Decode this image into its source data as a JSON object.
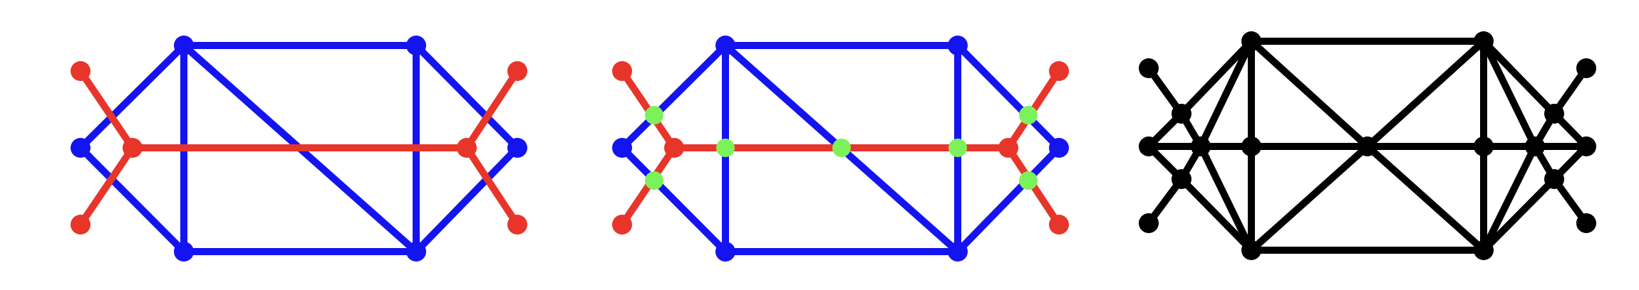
{
  "colors": {
    "blue": "#1414f0",
    "red": "#e8352a",
    "green": "#7cf25a",
    "black": "#000000"
  },
  "diagrams": [
    {
      "name": "panel-blue-red-graph",
      "edges": [
        {
          "from": "b_top_left",
          "to": "b_top_right",
          "color": "blue"
        },
        {
          "from": "b_bot_left",
          "to": "b_bot_right",
          "color": "blue"
        },
        {
          "from": "b_top_left",
          "to": "b_bot_left",
          "color": "blue"
        },
        {
          "from": "b_top_right",
          "to": "b_bot_right",
          "color": "blue"
        },
        {
          "from": "b_top_left",
          "to": "b_bot_right",
          "color": "blue"
        },
        {
          "from": "b_left",
          "to": "b_top_left",
          "color": "blue"
        },
        {
          "from": "b_left",
          "to": "b_bot_left",
          "color": "blue"
        },
        {
          "from": "b_right",
          "to": "b_top_right",
          "color": "blue"
        },
        {
          "from": "b_right",
          "to": "b_bot_right",
          "color": "blue"
        },
        {
          "from": "r_left_hub",
          "to": "r_right_hub",
          "color": "red"
        },
        {
          "from": "r_left_hub",
          "to": "r_left_top",
          "color": "red"
        },
        {
          "from": "r_left_hub",
          "to": "r_left_bot",
          "color": "red"
        },
        {
          "from": "r_right_hub",
          "to": "r_right_top",
          "color": "red"
        },
        {
          "from": "r_right_hub",
          "to": "r_right_bot",
          "color": "red"
        }
      ],
      "nodes": [
        {
          "id": "b_top_left",
          "color": "blue"
        },
        {
          "id": "b_top_right",
          "color": "blue"
        },
        {
          "id": "b_bot_left",
          "color": "blue"
        },
        {
          "id": "b_bot_right",
          "color": "blue"
        },
        {
          "id": "b_left",
          "color": "blue"
        },
        {
          "id": "b_right",
          "color": "blue"
        },
        {
          "id": "r_left_hub",
          "color": "red"
        },
        {
          "id": "r_right_hub",
          "color": "red"
        },
        {
          "id": "r_left_top",
          "color": "red"
        },
        {
          "id": "r_left_bot",
          "color": "red"
        },
        {
          "id": "r_right_top",
          "color": "red"
        },
        {
          "id": "r_right_bot",
          "color": "red"
        }
      ]
    },
    {
      "name": "panel-crossings-graph",
      "edges": [
        {
          "from": "b_top_left",
          "to": "b_top_right",
          "color": "blue"
        },
        {
          "from": "b_bot_left",
          "to": "b_bot_right",
          "color": "blue"
        },
        {
          "from": "b_top_left",
          "to": "b_bot_left",
          "color": "blue"
        },
        {
          "from": "b_top_right",
          "to": "b_bot_right",
          "color": "blue"
        },
        {
          "from": "b_top_left",
          "to": "b_bot_right",
          "color": "blue"
        },
        {
          "from": "b_left",
          "to": "b_top_left",
          "color": "blue"
        },
        {
          "from": "b_left",
          "to": "b_bot_left",
          "color": "blue"
        },
        {
          "from": "b_right",
          "to": "b_top_right",
          "color": "blue"
        },
        {
          "from": "b_right",
          "to": "b_bot_right",
          "color": "blue"
        },
        {
          "from": "r_left_hub",
          "to": "r_right_hub",
          "color": "red"
        },
        {
          "from": "r_left_hub",
          "to": "r_left_top",
          "color": "red"
        },
        {
          "from": "r_left_hub",
          "to": "r_left_bot",
          "color": "red"
        },
        {
          "from": "r_right_hub",
          "to": "r_right_top",
          "color": "red"
        },
        {
          "from": "r_right_hub",
          "to": "r_right_bot",
          "color": "red"
        }
      ],
      "nodes": [
        {
          "id": "b_top_left",
          "color": "blue"
        },
        {
          "id": "b_top_right",
          "color": "blue"
        },
        {
          "id": "b_bot_left",
          "color": "blue"
        },
        {
          "id": "b_bot_right",
          "color": "blue"
        },
        {
          "id": "b_left",
          "color": "blue"
        },
        {
          "id": "b_right",
          "color": "blue"
        },
        {
          "id": "r_left_hub",
          "color": "red"
        },
        {
          "id": "r_right_hub",
          "color": "red"
        },
        {
          "id": "r_left_top",
          "color": "red"
        },
        {
          "id": "r_left_bot",
          "color": "red"
        },
        {
          "id": "r_right_top",
          "color": "red"
        },
        {
          "id": "r_right_bot",
          "color": "red"
        },
        {
          "id": "g_left_up",
          "color": "green"
        },
        {
          "id": "g_left_down",
          "color": "green"
        },
        {
          "id": "g_mid_left",
          "color": "green"
        },
        {
          "id": "g_center",
          "color": "green"
        },
        {
          "id": "g_mid_right",
          "color": "green"
        },
        {
          "id": "g_right_up",
          "color": "green"
        },
        {
          "id": "g_right_down",
          "color": "green"
        }
      ]
    },
    {
      "name": "panel-black-planarized-graph",
      "edges": [
        {
          "from": "k_top_left",
          "to": "k_top_right",
          "color": "black"
        },
        {
          "from": "k_bot_left",
          "to": "k_bot_right",
          "color": "black"
        },
        {
          "from": "k_top_left",
          "to": "k_mid_left",
          "color": "black"
        },
        {
          "from": "k_mid_left",
          "to": "k_bot_left",
          "color": "black"
        },
        {
          "from": "k_top_right",
          "to": "k_mid_right",
          "color": "black"
        },
        {
          "from": "k_mid_right",
          "to": "k_bot_right",
          "color": "black"
        },
        {
          "from": "k_top_left",
          "to": "k_center",
          "color": "black"
        },
        {
          "from": "k_center",
          "to": "k_bot_right",
          "color": "black"
        },
        {
          "from": "k_top_right",
          "to": "k_center",
          "color": "black"
        },
        {
          "from": "k_center",
          "to": "k_bot_left",
          "color": "black"
        },
        {
          "from": "k_left",
          "to": "k_hub_left",
          "color": "black"
        },
        {
          "from": "k_hub_left",
          "to": "k_mid_left",
          "color": "black"
        },
        {
          "from": "k_mid_left",
          "to": "k_center",
          "color": "black"
        },
        {
          "from": "k_center",
          "to": "k_mid_right",
          "color": "black"
        },
        {
          "from": "k_mid_right",
          "to": "k_hub_right",
          "color": "black"
        },
        {
          "from": "k_hub_right",
          "to": "k_right",
          "color": "black"
        },
        {
          "from": "k_left",
          "to": "k_up_left",
          "color": "black"
        },
        {
          "from": "k_left",
          "to": "k_dn_left",
          "color": "black"
        },
        {
          "from": "k_up_left",
          "to": "k_top_left",
          "color": "black"
        },
        {
          "from": "k_dn_left",
          "to": "k_bot_left",
          "color": "black"
        },
        {
          "from": "k_up_left",
          "to": "k_hub_left",
          "color": "black"
        },
        {
          "from": "k_dn_left",
          "to": "k_hub_left",
          "color": "black"
        },
        {
          "from": "k_up_left",
          "to": "k_leaf_lt",
          "color": "black"
        },
        {
          "from": "k_dn_left",
          "to": "k_leaf_lb",
          "color": "black"
        },
        {
          "from": "k_right",
          "to": "k_up_right",
          "color": "black"
        },
        {
          "from": "k_right",
          "to": "k_dn_right",
          "color": "black"
        },
        {
          "from": "k_up_right",
          "to": "k_top_right",
          "color": "black"
        },
        {
          "from": "k_dn_right",
          "to": "k_bot_right",
          "color": "black"
        },
        {
          "from": "k_up_right",
          "to": "k_hub_right",
          "color": "black"
        },
        {
          "from": "k_dn_right",
          "to": "k_hub_right",
          "color": "black"
        },
        {
          "from": "k_up_right",
          "to": "k_leaf_rt",
          "color": "black"
        },
        {
          "from": "k_dn_right",
          "to": "k_leaf_rb",
          "color": "black"
        },
        {
          "from": "k_hub_left",
          "to": "k_top_left",
          "color": "black"
        },
        {
          "from": "k_hub_left",
          "to": "k_bot_left",
          "color": "black"
        },
        {
          "from": "k_hub_right",
          "to": "k_top_right",
          "color": "black"
        },
        {
          "from": "k_hub_right",
          "to": "k_bot_right",
          "color": "black"
        }
      ],
      "nodes": [
        {
          "id": "k_top_left",
          "color": "black"
        },
        {
          "id": "k_top_right",
          "color": "black"
        },
        {
          "id": "k_bot_left",
          "color": "black"
        },
        {
          "id": "k_bot_right",
          "color": "black"
        },
        {
          "id": "k_left",
          "color": "black"
        },
        {
          "id": "k_right",
          "color": "black"
        },
        {
          "id": "k_hub_left",
          "color": "black"
        },
        {
          "id": "k_hub_right",
          "color": "black"
        },
        {
          "id": "k_mid_left",
          "color": "black"
        },
        {
          "id": "k_mid_right",
          "color": "black"
        },
        {
          "id": "k_center",
          "color": "black"
        },
        {
          "id": "k_up_left",
          "color": "black"
        },
        {
          "id": "k_dn_left",
          "color": "black"
        },
        {
          "id": "k_up_right",
          "color": "black"
        },
        {
          "id": "k_dn_right",
          "color": "black"
        },
        {
          "id": "k_leaf_lt",
          "color": "black"
        },
        {
          "id": "k_leaf_lb",
          "color": "black"
        },
        {
          "id": "k_leaf_rt",
          "color": "black"
        },
        {
          "id": "k_leaf_rb",
          "color": "black"
        }
      ]
    }
  ]
}
